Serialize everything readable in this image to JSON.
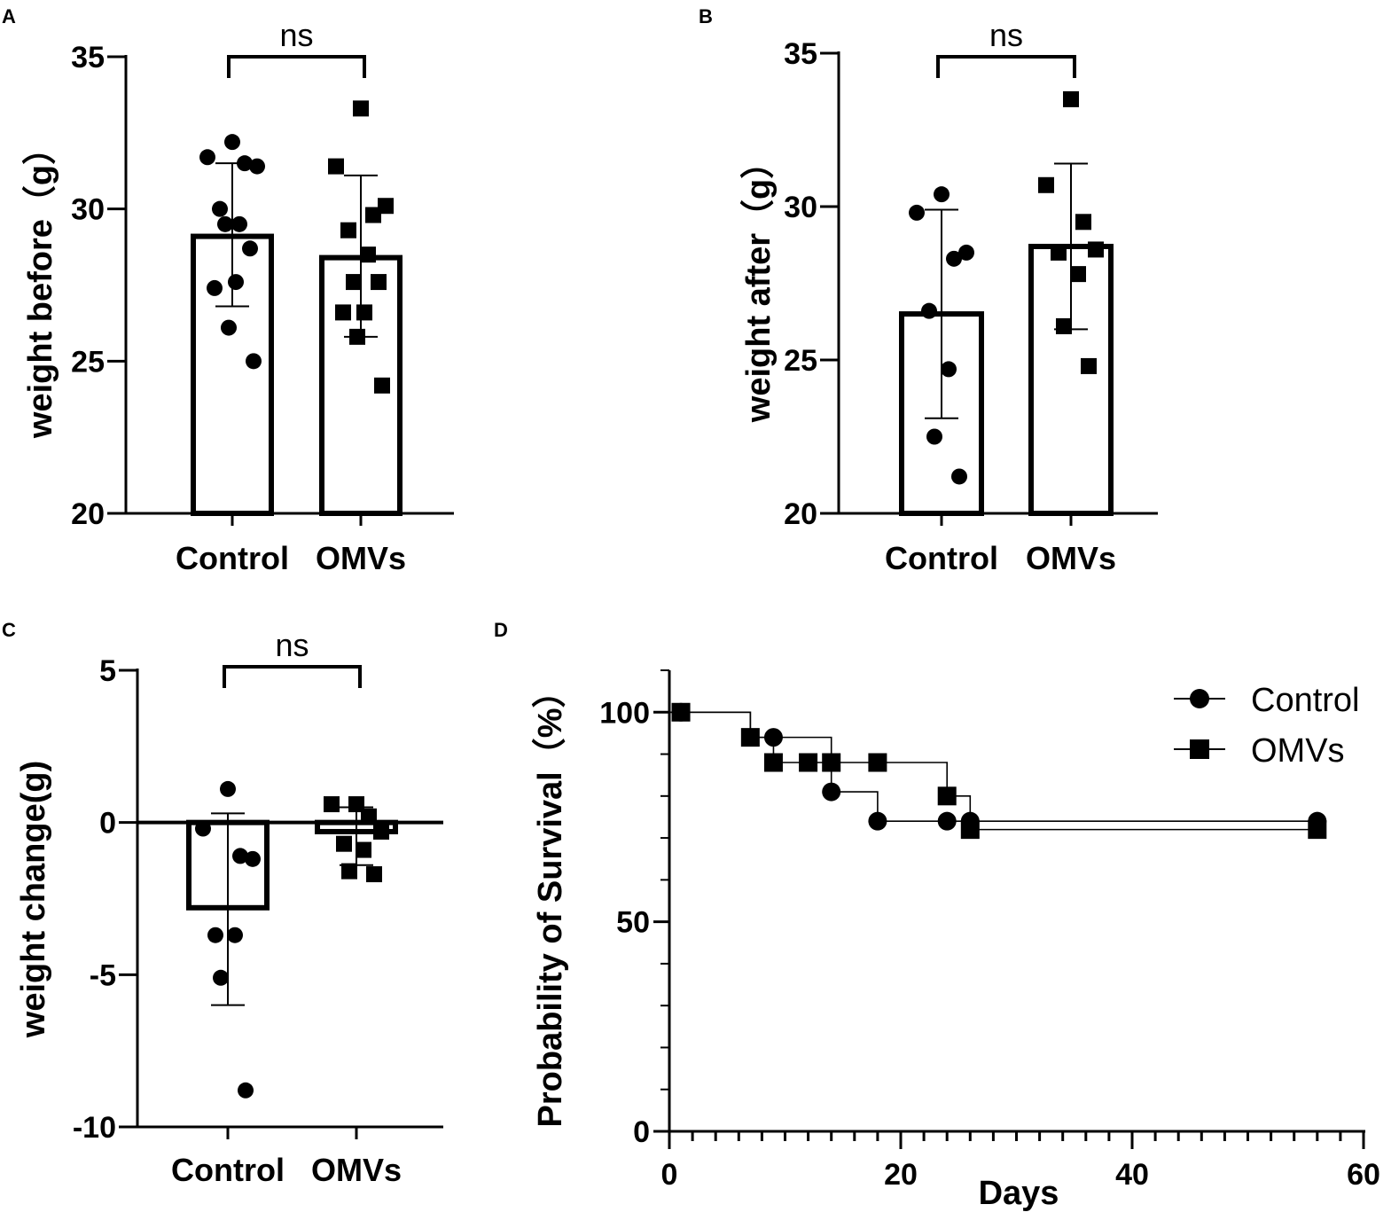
{
  "chart_data": [
    {
      "panel": "A",
      "type": "bar",
      "ylabel": "weight before（g）",
      "yticks": [
        "20",
        "25",
        "30",
        "35"
      ],
      "ylim": [
        20,
        35
      ],
      "significance": "ns",
      "categories": [
        "Control",
        "OMVs"
      ],
      "bars": [
        {
          "category": "Control",
          "mean": 29.1,
          "sd_low": 26.8,
          "sd_high": 31.5,
          "marker": "circle",
          "points": [
            32.2,
            31.7,
            31.5,
            31.4,
            30.0,
            29.5,
            29.5,
            28.7,
            27.4,
            27.6,
            26.1,
            25.0
          ]
        },
        {
          "category": "OMVs",
          "mean": 28.4,
          "sd_low": 25.8,
          "sd_high": 31.1,
          "marker": "square",
          "points": [
            33.3,
            31.4,
            29.8,
            30.1,
            29.3,
            28.5,
            27.6,
            27.6,
            26.6,
            26.6,
            25.8,
            24.2
          ]
        }
      ]
    },
    {
      "panel": "B",
      "type": "bar",
      "ylabel": "weight after（g）",
      "yticks": [
        "20",
        "25",
        "30",
        "35"
      ],
      "ylim": [
        20,
        35
      ],
      "significance": "ns",
      "categories": [
        "Control",
        "OMVs"
      ],
      "bars": [
        {
          "category": "Control",
          "mean": 26.5,
          "sd_low": 23.1,
          "sd_high": 29.9,
          "marker": "circle",
          "points": [
            30.4,
            29.8,
            28.3,
            28.5,
            26.6,
            24.7,
            22.5,
            21.2
          ]
        },
        {
          "category": "OMVs",
          "mean": 28.7,
          "sd_low": 26.0,
          "sd_high": 31.4,
          "marker": "square",
          "points": [
            33.5,
            30.7,
            29.5,
            28.6,
            28.5,
            27.8,
            26.1,
            24.8
          ]
        }
      ]
    },
    {
      "panel": "C",
      "type": "bar",
      "ylabel": "weight change(g)",
      "yticks": [
        "-10",
        "-5",
        "0",
        "5"
      ],
      "ylim": [
        -10,
        5
      ],
      "significance": "ns",
      "categories": [
        "Control",
        "OMVs"
      ],
      "bars": [
        {
          "category": "Control",
          "mean": -2.8,
          "sd_low": -6.0,
          "sd_high": 0.3,
          "marker": "circle",
          "points": [
            1.1,
            -0.2,
            -1.1,
            -1.2,
            -3.7,
            -3.7,
            -5.1,
            -8.8
          ]
        },
        {
          "category": "OMVs",
          "mean": -0.3,
          "sd_low": -1.4,
          "sd_high": 0.5,
          "marker": "square",
          "points": [
            0.6,
            0.6,
            0.2,
            -0.3,
            -0.7,
            -0.9,
            -1.6,
            -1.7
          ]
        }
      ]
    },
    {
      "panel": "D",
      "type": "line",
      "subtype": "kaplan-meier",
      "xlabel": "Days",
      "ylabel": "Probability of Survival（%）",
      "xticks": [
        "0",
        "20",
        "40",
        "60"
      ],
      "yticks": [
        "0",
        "50",
        "100"
      ],
      "xlim": [
        0,
        60
      ],
      "ylim": [
        0,
        110
      ],
      "legend_position": "top-right",
      "series": [
        {
          "name": "Control",
          "marker": "circle",
          "steps": [
            [
              0,
              100
            ],
            [
              7,
              94
            ],
            [
              9,
              94
            ],
            [
              14,
              81
            ],
            [
              18,
              74
            ],
            [
              24,
              74
            ],
            [
              26,
              74
            ],
            [
              56,
              74
            ]
          ],
          "markers": [
            [
              1,
              100
            ],
            [
              9,
              94
            ],
            [
              14,
              81
            ],
            [
              18,
              74
            ],
            [
              24,
              74
            ],
            [
              26,
              74
            ],
            [
              56,
              74
            ]
          ]
        },
        {
          "name": "OMVs",
          "marker": "square",
          "steps": [
            [
              0,
              100
            ],
            [
              7,
              94
            ],
            [
              9,
              88
            ],
            [
              12,
              88
            ],
            [
              18,
              88
            ],
            [
              24,
              80
            ],
            [
              26,
              72
            ],
            [
              56,
              72
            ]
          ],
          "markers": [
            [
              1,
              100
            ],
            [
              7,
              94
            ],
            [
              9,
              88
            ],
            [
              12,
              88
            ],
            [
              14,
              88
            ],
            [
              18,
              88
            ],
            [
              24,
              80
            ],
            [
              26,
              72
            ],
            [
              56,
              72
            ]
          ]
        }
      ]
    }
  ]
}
